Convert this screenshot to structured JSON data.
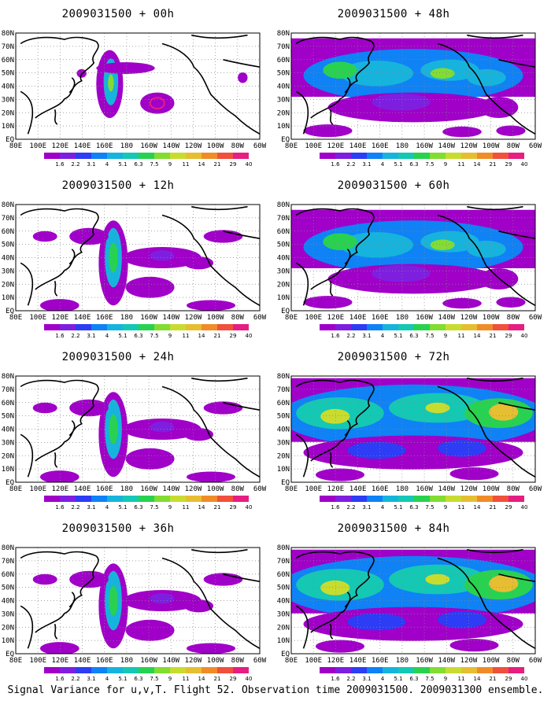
{
  "figure": {
    "caption": "Signal Variance for u,v,T. Flight 52. Observation time 2009031500. 2009031300 ensemble."
  },
  "lat_labels": [
    "80N",
    "70N",
    "60N",
    "50N",
    "40N",
    "30N",
    "20N",
    "10N",
    "EQ"
  ],
  "lon_labels": [
    "80E",
    "100E",
    "120E",
    "140E",
    "160E",
    "180",
    "160W",
    "140W",
    "120W",
    "100W",
    "80W",
    "60W"
  ],
  "colorbar": {
    "labels": [
      "1.6",
      "2.2",
      "3.1",
      "4",
      "5.1",
      "6.3",
      "7.5",
      "9",
      "11",
      "14",
      "21",
      "29",
      "40"
    ],
    "colors": [
      "#a000c8",
      "#7e1fe0",
      "#2d3cf5",
      "#0f82f5",
      "#16b4dc",
      "#14c8b4",
      "#28d250",
      "#82dc32",
      "#c8dc30",
      "#e6be32",
      "#f08c28",
      "#f0503c",
      "#e61e82"
    ]
  },
  "panels": [
    {
      "title": "2009031500 + 00h",
      "coverage": "sparse"
    },
    {
      "title": "2009031500 + 48h",
      "coverage": "moderate"
    },
    {
      "title": "2009031500 + 12h",
      "coverage": "light"
    },
    {
      "title": "2009031500 + 60h",
      "coverage": "moderate"
    },
    {
      "title": "2009031500 + 24h",
      "coverage": "light"
    },
    {
      "title": "2009031500 + 72h",
      "coverage": "high"
    },
    {
      "title": "2009031500 + 36h",
      "coverage": "light"
    },
    {
      "title": "2009031500 + 84h",
      "coverage": "high"
    }
  ]
}
